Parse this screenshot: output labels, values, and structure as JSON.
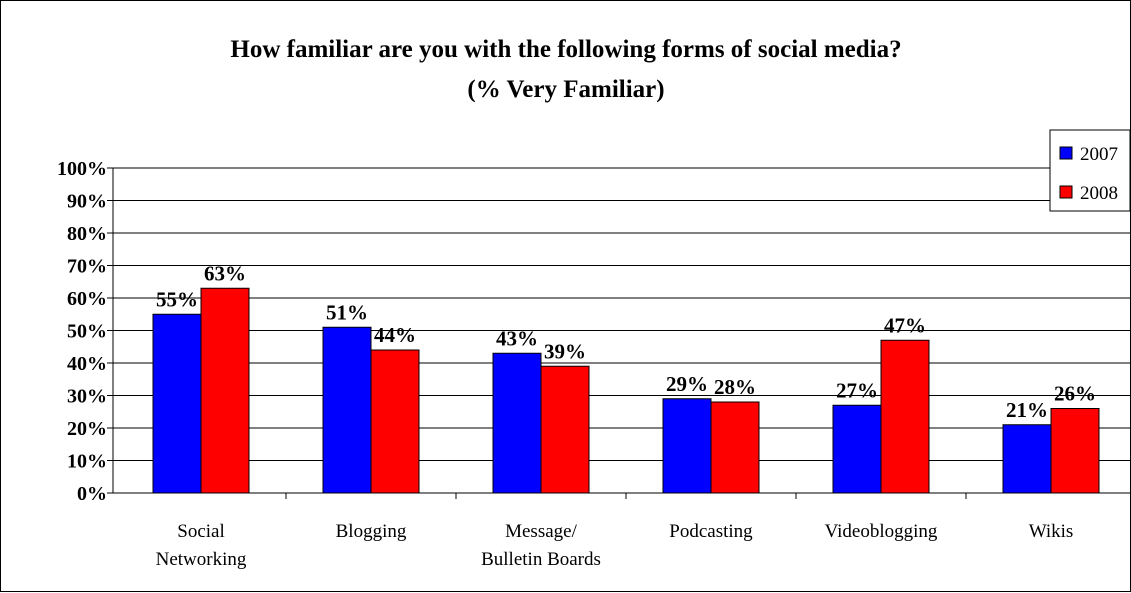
{
  "chart_data": {
    "type": "bar",
    "title": "How familiar are you with the following forms of social media?",
    "subtitle": "(% Very Familiar)",
    "categories": [
      "Social Networking",
      "Blogging",
      "Message/ Bulletin Boards",
      "Podcasting",
      "Videoblogging",
      "Wikis"
    ],
    "category_lines": [
      [
        "Social",
        "Networking"
      ],
      [
        "Blogging"
      ],
      [
        "Message/",
        "Bulletin Boards"
      ],
      [
        "Podcasting"
      ],
      [
        "Videoblogging"
      ],
      [
        "Wikis"
      ]
    ],
    "series": [
      {
        "name": "2007",
        "color": "#0000FF",
        "values": [
          55,
          51,
          43,
          29,
          27,
          21
        ],
        "labels": [
          "55%",
          "51%",
          "43%",
          "29%",
          "27%",
          "21%"
        ]
      },
      {
        "name": "2008",
        "color": "#FF0000",
        "values": [
          63,
          44,
          39,
          28,
          47,
          26
        ],
        "labels": [
          "63%",
          "44%",
          "39%",
          "28%",
          "47%",
          "26%"
        ]
      }
    ],
    "ylim": [
      0,
      100
    ],
    "yticks": [
      0,
      10,
      20,
      30,
      40,
      50,
      60,
      70,
      80,
      90,
      100
    ],
    "ytick_labels": [
      "0%",
      "10%",
      "20%",
      "30%",
      "40%",
      "50%",
      "60%",
      "70%",
      "80%",
      "90%",
      "100%"
    ],
    "xlabel": "",
    "ylabel": "",
    "grid": true,
    "legend_position": "top-right"
  }
}
